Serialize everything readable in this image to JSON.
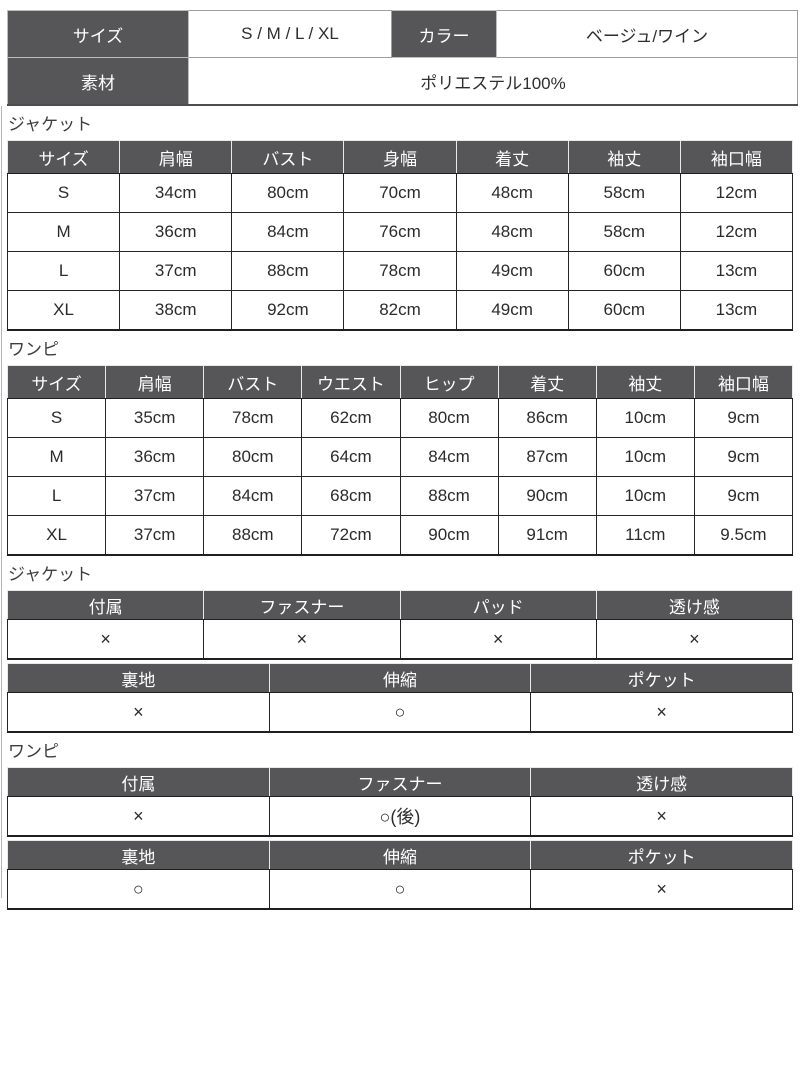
{
  "colors": {
    "header_bg": "#565658",
    "header_text": "#ffffff",
    "cell_text": "#2b2b2b",
    "border_dark": "#242424",
    "border_light": "#9e9e9e"
  },
  "info_table": {
    "size_label": "サイズ",
    "size_value": "S / M / L / XL",
    "color_label": "カラー",
    "color_value": "ベージュ/ワイン",
    "material_label": "素材",
    "material_value": "ポリエステル100%"
  },
  "jacket_size": {
    "section_label": "ジャケット",
    "headers": [
      "サイズ",
      "肩幅",
      "バスト",
      "身幅",
      "着丈",
      "袖丈",
      "袖口幅"
    ],
    "rows": [
      [
        "S",
        "34cm",
        "80cm",
        "70cm",
        "48cm",
        "58cm",
        "12cm"
      ],
      [
        "M",
        "36cm",
        "84cm",
        "76cm",
        "48cm",
        "58cm",
        "12cm"
      ],
      [
        "L",
        "37cm",
        "88cm",
        "78cm",
        "49cm",
        "60cm",
        "13cm"
      ],
      [
        "XL",
        "38cm",
        "92cm",
        "82cm",
        "49cm",
        "60cm",
        "13cm"
      ]
    ]
  },
  "onepiece_size": {
    "section_label": "ワンピ",
    "headers": [
      "サイズ",
      "肩幅",
      "バスト",
      "ウエスト",
      "ヒップ",
      "着丈",
      "袖丈",
      "袖口幅"
    ],
    "rows": [
      [
        "S",
        "35cm",
        "78cm",
        "62cm",
        "80cm",
        "86cm",
        "10cm",
        "9cm"
      ],
      [
        "M",
        "36cm",
        "80cm",
        "64cm",
        "84cm",
        "87cm",
        "10cm",
        "9cm"
      ],
      [
        "L",
        "37cm",
        "84cm",
        "68cm",
        "88cm",
        "90cm",
        "10cm",
        "9cm"
      ],
      [
        "XL",
        "37cm",
        "88cm",
        "72cm",
        "90cm",
        "91cm",
        "11cm",
        "9.5cm"
      ]
    ]
  },
  "jacket_details": {
    "section_label": "ジャケット",
    "table1": {
      "headers": [
        "付属",
        "ファスナー",
        "パッド",
        "透け感"
      ],
      "values": [
        "×",
        "×",
        "×",
        "×"
      ]
    },
    "table2": {
      "headers": [
        "裏地",
        "伸縮",
        "ポケット"
      ],
      "values": [
        "×",
        "○",
        "×"
      ]
    }
  },
  "onepiece_details": {
    "section_label": "ワンピ",
    "table1": {
      "headers": [
        "付属",
        "ファスナー",
        "透け感"
      ],
      "values": [
        "×",
        "○(後)",
        "×"
      ]
    },
    "table2": {
      "headers": [
        "裏地",
        "伸縮",
        "ポケット"
      ],
      "values": [
        "○",
        "○",
        "×"
      ]
    }
  }
}
